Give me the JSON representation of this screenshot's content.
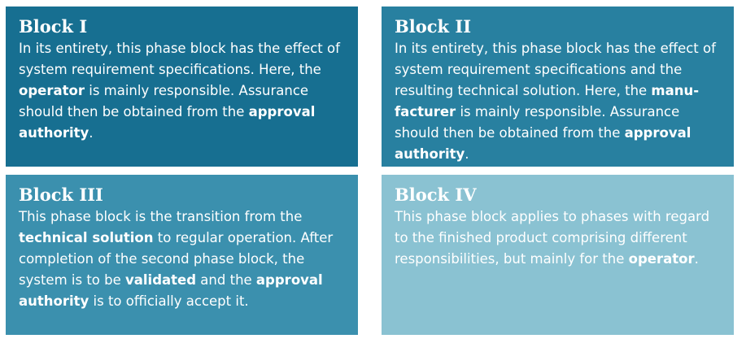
{
  "colors": {
    "block_1": "#176f91",
    "block_2": "#2880a0",
    "block_3": "#3b90ae",
    "block_4": "#8ac2d2"
  },
  "blocks": [
    {
      "title": "Block I",
      "body": [
        {
          "t": "In its entirety, this phase block has the effect of system requirement specifications. Here, the "
        },
        {
          "t": "operator",
          "b": true
        },
        {
          "t": " is mainly responsible. Assurance should then be obtained from the "
        },
        {
          "t": "approval authority",
          "b": true
        },
        {
          "t": "."
        }
      ]
    },
    {
      "title": "Block II",
      "body": [
        {
          "t": "In its entirety, this phase block has the effect of system requirement specifications and the resulting technical solution. Here, the "
        },
        {
          "t": "manu-facturer",
          "b": true
        },
        {
          "t": " is mainly responsible. Assurance should then be obtained from the "
        },
        {
          "t": "approval authority",
          "b": true
        },
        {
          "t": "."
        }
      ]
    },
    {
      "title": "Block III",
      "body": [
        {
          "t": "This phase block is the transition from the "
        },
        {
          "t": "technical solution",
          "b": true
        },
        {
          "t": " to regular operation. After completion of the second phase block, the system is to be "
        },
        {
          "t": "validated",
          "b": true
        },
        {
          "t": " and the "
        },
        {
          "t": "approval authority",
          "b": true
        },
        {
          "t": " is to officially accept it."
        }
      ]
    },
    {
      "title": "Block IV",
      "body": [
        {
          "t": "This phase block applies to phases with regard to the finished product comprising different responsibilities, but mainly for the "
        },
        {
          "t": "operator",
          "b": true
        },
        {
          "t": "."
        }
      ]
    }
  ]
}
